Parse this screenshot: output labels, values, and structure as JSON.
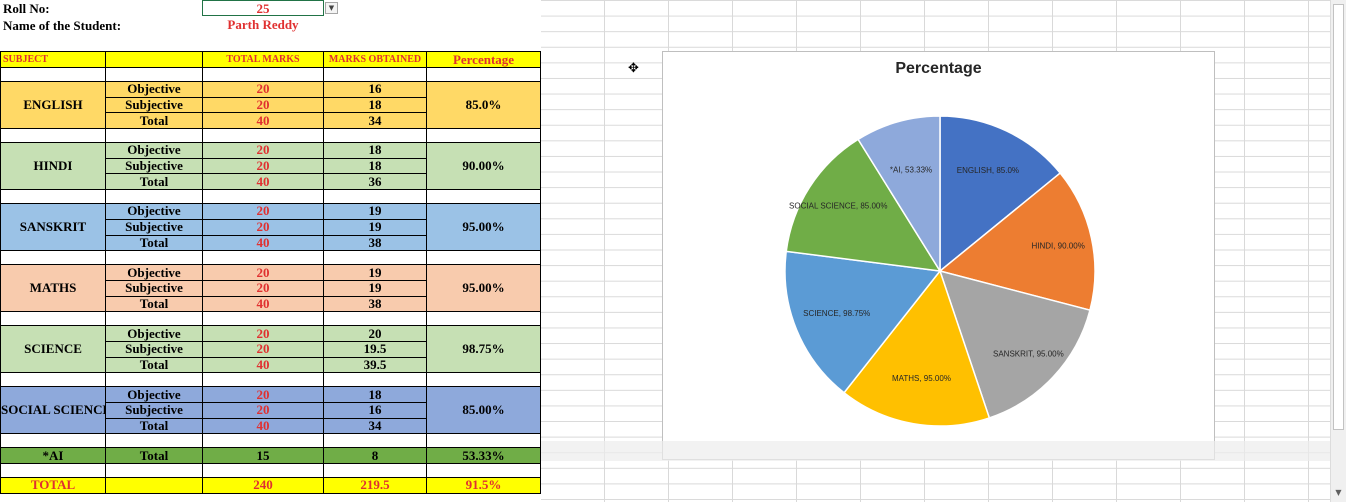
{
  "header": {
    "roll_label": "Roll No:",
    "roll_value": "25",
    "name_label": "Name of the Student:",
    "name_value": "Parth Reddy"
  },
  "table": {
    "columns": [
      "SUBJECT",
      "",
      "TOTAL MARKS",
      "MARKS  OBTAINED",
      "Percentage"
    ],
    "subjects": [
      {
        "name": "ENGLISH",
        "rows": [
          [
            "Objective",
            "20",
            "16"
          ],
          [
            "Subjective",
            "20",
            "18"
          ],
          [
            "Total",
            "40",
            "34"
          ]
        ],
        "percentage": "85.0%",
        "color": "#ffd966"
      },
      {
        "name": "HINDI",
        "rows": [
          [
            "Objective",
            "20",
            "18"
          ],
          [
            "Subjective",
            "20",
            "18"
          ],
          [
            "Total",
            "40",
            "36"
          ]
        ],
        "percentage": "90.00%",
        "color": "#c6e0b4"
      },
      {
        "name": "SANSKRIT",
        "rows": [
          [
            "Objective",
            "20",
            "19"
          ],
          [
            "Subjective",
            "20",
            "19"
          ],
          [
            "Total",
            "40",
            "38"
          ]
        ],
        "percentage": "95.00%",
        "color": "#9bc2e6"
      },
      {
        "name": "MATHS",
        "rows": [
          [
            "Objective",
            "20",
            "19"
          ],
          [
            "Subjective",
            "20",
            "19"
          ],
          [
            "Total",
            "40",
            "38"
          ]
        ],
        "percentage": "95.00%",
        "color": "#f8cbad"
      },
      {
        "name": "SCIENCE",
        "rows": [
          [
            "Objective",
            "20",
            "20"
          ],
          [
            "Subjective",
            "20",
            "19.5"
          ],
          [
            "Total",
            "40",
            "39.5"
          ]
        ],
        "percentage": "98.75%",
        "color": "#c6e0b4"
      },
      {
        "name": "SOCIAL SCIENCE",
        "rows": [
          [
            "Objective",
            "20",
            "18"
          ],
          [
            "Subjective",
            "20",
            "16"
          ],
          [
            "Total",
            "40",
            "34"
          ]
        ],
        "percentage": "85.00%",
        "color": "#8ea9db"
      }
    ],
    "ai": {
      "name": "*AI",
      "label": "Total",
      "total": "15",
      "obtained": "8",
      "percentage": "53.33%"
    },
    "grand_total": {
      "label": "TOTAL",
      "total": "240",
      "obtained": "219.5",
      "percentage": "91.5%"
    }
  },
  "chart_data": {
    "type": "pie",
    "title": "Percentage",
    "categories": [
      "ENGLISH",
      "HINDI",
      "SANSKRIT",
      "MATHS",
      "SCIENCE",
      "SOCIAL SCIENCE",
      "*AI"
    ],
    "values": [
      85.0,
      90.0,
      95.0,
      95.0,
      98.75,
      85.0,
      53.33
    ],
    "labels": [
      "ENGLISH, 85.0%",
      "HINDI, 90.00%",
      "SANSKRIT, 95.00%",
      "MATHS, 95.00%",
      "SCIENCE, 98.75%",
      "SOCIAL SCIENCE, 85.00%",
      "*AI, 53.33%"
    ],
    "colors": [
      "#4472c4",
      "#ed7d31",
      "#a5a5a5",
      "#ffc000",
      "#5b9bd5",
      "#70ad47",
      "#8ea9db"
    ],
    "start_angle": "12 o'clock, clockwise"
  }
}
